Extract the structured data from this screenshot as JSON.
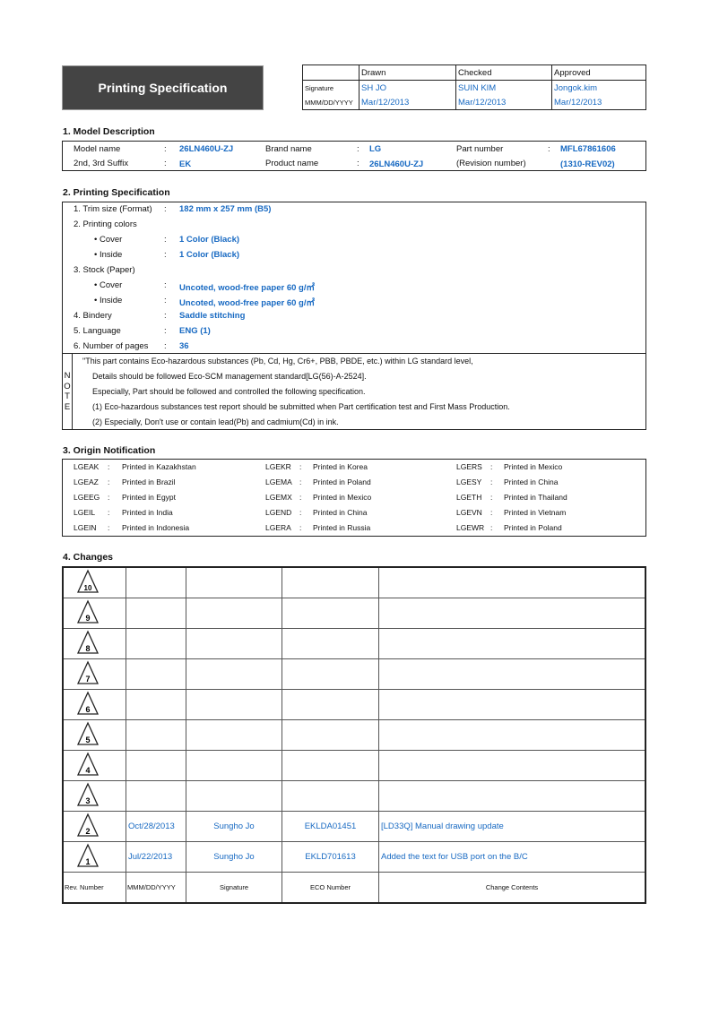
{
  "header": {
    "title": "Printing Specification",
    "sign_table": {
      "columns": [
        "Drawn",
        "Checked",
        "Approved"
      ],
      "signature_label": "Signature",
      "date_label": "MMM/DD/YYYY",
      "signatures": [
        "SH JO",
        "SUIN KIM",
        "Jongok.kim"
      ],
      "dates": [
        "Mar/12/2013",
        "Mar/12/2013",
        "Mar/12/2013"
      ]
    }
  },
  "model": {
    "heading": "1. Model Description",
    "model_name_label": "Model name",
    "model_name": "26LN460U-ZJ",
    "suffix_label": "2nd, 3rd Suffix",
    "suffix": "EK",
    "brand_label": "Brand name",
    "brand": "LG",
    "product_label": "Product name",
    "product": "26LN460U-ZJ",
    "part_label": "Part number",
    "part": "MFL67861606",
    "revision_label": "(Revision number)",
    "revision": "(1310-REV02)",
    "colon": ":"
  },
  "spec": {
    "heading": "2. Printing Specification",
    "rows": [
      {
        "label": "1. Trim size (Format)",
        "value": "182 mm x 257 mm (B5)"
      },
      {
        "label": "2. Printing colors",
        "value": ""
      },
      {
        "label": "• Cover",
        "value": "1 Color (Black)"
      },
      {
        "label": "• Inside",
        "value": "1 Color (Black)"
      },
      {
        "label": "3. Stock (Paper)",
        "value": ""
      },
      {
        "label": "• Cover",
        "value": "Uncoted, wood-free paper 60 g/㎡"
      },
      {
        "label": "• Inside",
        "value": "Uncoted, wood-free paper 60 g/㎡"
      },
      {
        "label": "4. Bindery",
        "value": "Saddle stitching"
      },
      {
        "label": "5. Language",
        "value": "ENG (1)"
      },
      {
        "label": "6. Number of pages",
        "value": "36"
      }
    ],
    "note_letters": [
      "N",
      "O",
      "T",
      "E"
    ],
    "notes": [
      "\"This part contains Eco-hazardous substances (Pb, Cd, Hg, Cr6+, PBB, PBDE, etc.) within LG standard level,",
      "Details should be followed Eco-SCM management standard[LG(56)-A-2524].",
      "Especially, Part should be followed and controlled the following specification.",
      "(1) Eco-hazardous substances test report should be submitted when Part certification test and First Mass Production.",
      "(2) Especially, Don't use or contain lead(Pb) and cadmium(Cd) in ink."
    ]
  },
  "origin": {
    "heading": "3. Origin Notification",
    "rows": [
      [
        {
          "code": "LGEAK",
          "text": "Printed in Kazakhstan"
        },
        {
          "code": "LGEKR",
          "text": "Printed in Korea"
        },
        {
          "code": "LGERS",
          "text": "Printed in Mexico"
        }
      ],
      [
        {
          "code": "LGEAZ",
          "text": "Printed in Brazil"
        },
        {
          "code": "LGEMA",
          "text": "Printed in Poland"
        },
        {
          "code": "LGESY",
          "text": "Printed in China"
        }
      ],
      [
        {
          "code": "LGEEG",
          "text": "Printed in Egypt"
        },
        {
          "code": "LGEMX",
          "text": "Printed in Mexico"
        },
        {
          "code": "LGETH",
          "text": "Printed in Thailand"
        }
      ],
      [
        {
          "code": "LGEIL",
          "text": "Printed in India"
        },
        {
          "code": "LGEND",
          "text": "Printed in China"
        },
        {
          "code": "LGEVN",
          "text": "Printed in Vietnam"
        }
      ],
      [
        {
          "code": "LGEIN",
          "text": "Printed in Indonesia"
        },
        {
          "code": "LGERA",
          "text": "Printed in Russia"
        },
        {
          "code": "LGEWR",
          "text": "Printed in Poland"
        }
      ]
    ]
  },
  "changes": {
    "heading": "4. Changes",
    "rows": [
      {
        "rev": "10",
        "date": "",
        "signature": "",
        "eco": "",
        "contents": ""
      },
      {
        "rev": "9",
        "date": "",
        "signature": "",
        "eco": "",
        "contents": ""
      },
      {
        "rev": "8",
        "date": "",
        "signature": "",
        "eco": "",
        "contents": ""
      },
      {
        "rev": "7",
        "date": "",
        "signature": "",
        "eco": "",
        "contents": ""
      },
      {
        "rev": "6",
        "date": "",
        "signature": "",
        "eco": "",
        "contents": ""
      },
      {
        "rev": "5",
        "date": "",
        "signature": "",
        "eco": "",
        "contents": ""
      },
      {
        "rev": "4",
        "date": "",
        "signature": "",
        "eco": "",
        "contents": ""
      },
      {
        "rev": "3",
        "date": "",
        "signature": "",
        "eco": "",
        "contents": ""
      },
      {
        "rev": "2",
        "date": "Oct/28/2013",
        "signature": "Sungho Jo",
        "eco": "EKLDA01451",
        "contents": "[LD33Q] Manual drawing update"
      },
      {
        "rev": "1",
        "date": "Jul/22/2013",
        "signature": "Sungho Jo",
        "eco": "EKLD701613",
        "contents": " Added the text for USB port on the B/C"
      }
    ],
    "headers": {
      "rev": "Rev. Number",
      "date": "MMM/DD/YYYY",
      "signature": "Signature",
      "eco": "ECO Number",
      "contents": "Change Contents"
    }
  },
  "colors": {
    "accent_text": "#1769c2",
    "title_bg": "#444444"
  }
}
